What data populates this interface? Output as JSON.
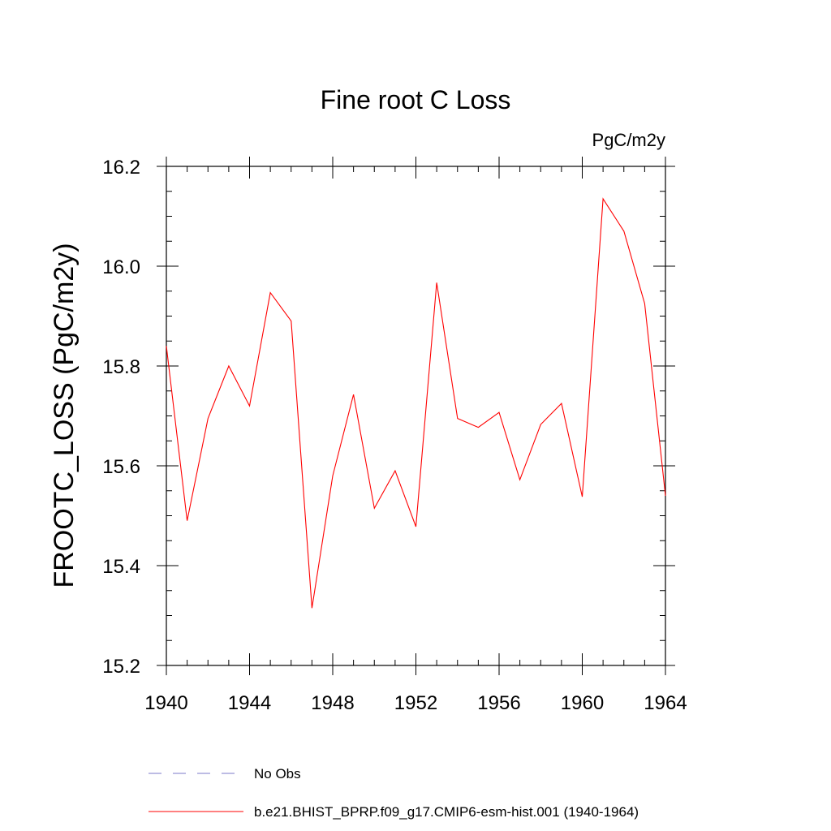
{
  "chart_data": {
    "type": "line",
    "title": "Fine root C Loss",
    "units_label": "PgC/m2y",
    "ylabel": "FROOTC_LOSS  (PgC/m2y)",
    "xlabel": "",
    "xlim": [
      1940,
      1964
    ],
    "ylim": [
      15.2,
      16.2
    ],
    "x_ticks": [
      "1940",
      "1944",
      "1948",
      "1952",
      "1956",
      "1960",
      "1964"
    ],
    "y_ticks": [
      "15.2",
      "15.4",
      "15.6",
      "15.8",
      "16.0",
      "16.2"
    ],
    "series": [
      {
        "name": "b.e21.BHIST_BPRP.f09_g17.CMIP6-esm-hist.001 (1940-1964)",
        "color": "#ff0000",
        "x": [
          1940,
          1941,
          1942,
          1943,
          1944,
          1945,
          1946,
          1947,
          1948,
          1949,
          1950,
          1951,
          1952,
          1953,
          1954,
          1955,
          1956,
          1957,
          1958,
          1959,
          1960,
          1961,
          1962,
          1963,
          1964
        ],
        "y": [
          15.84,
          15.49,
          15.695,
          15.8,
          15.72,
          15.947,
          15.89,
          15.315,
          15.58,
          15.743,
          15.515,
          15.59,
          15.478,
          15.967,
          15.695,
          15.677,
          15.707,
          15.572,
          15.683,
          15.725,
          15.538,
          16.135,
          16.07,
          15.925,
          15.54
        ]
      }
    ],
    "legend": [
      {
        "label": "No Obs",
        "color": "#7b78c8",
        "style": "dashed"
      },
      {
        "label": "b.e21.BHIST_BPRP.f09_g17.CMIP6-esm-hist.001 (1940-1964)",
        "color": "#ff0000",
        "style": "solid"
      }
    ],
    "grid": false,
    "legend_placement": "bottom"
  }
}
